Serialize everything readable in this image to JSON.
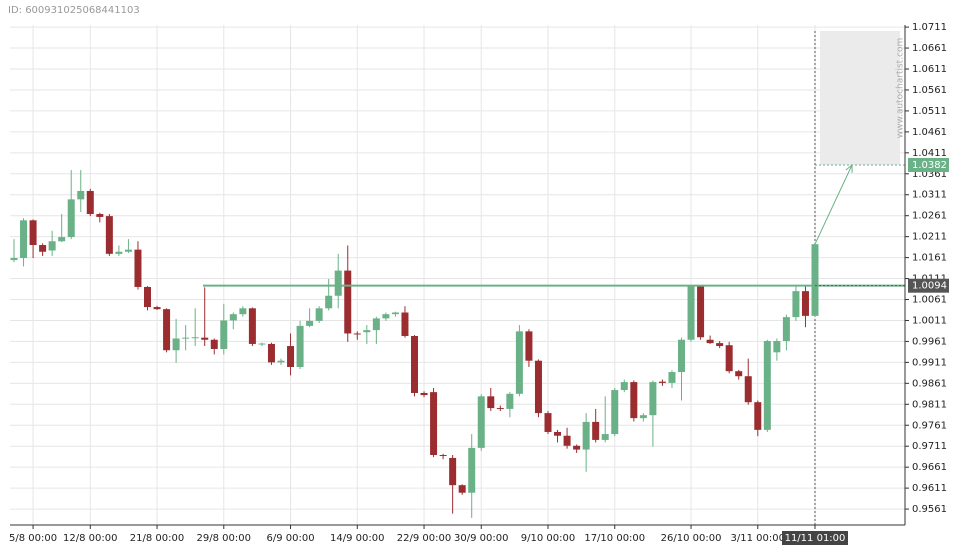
{
  "chart_data": {
    "type": "candlestick",
    "id_text": "ID: 600931025068441103",
    "watermark": "www.autochartist.com",
    "up_color": "#6ab187",
    "down_color": "#9b2d30",
    "categories": [
      null,
      null,
      "5/8 00:00",
      null,
      null,
      null,
      null,
      null,
      "12/8 00:00",
      null,
      null,
      null,
      null,
      null,
      null,
      "21/8 00:00",
      null,
      null,
      null,
      null,
      null,
      null,
      "29/8 00:00",
      null,
      null,
      null,
      null,
      null,
      null,
      "6/9 00:00",
      null,
      null,
      null,
      null,
      null,
      null,
      "14/9 00:00",
      null,
      null,
      null,
      null,
      null,
      null,
      "22/9 00:00",
      null,
      null,
      null,
      null,
      null,
      "30/9 00:00",
      null,
      null,
      null,
      null,
      null,
      null,
      "9/10 00:00",
      null,
      null,
      null,
      null,
      null,
      null,
      "17/10 00:00",
      null,
      null,
      null,
      null,
      null,
      null,
      null,
      "26/10 00:00",
      null,
      null,
      null,
      null,
      null,
      null,
      "3/11 00:00",
      null,
      null,
      null,
      null,
      null,
      "11/11 01:00"
    ],
    "open": [
      1.0155,
      1.016,
      1.025,
      1.0191,
      1.0178,
      1.02,
      1.021,
      1.03,
      1.032,
      1.0265,
      1.026,
      1.017,
      1.0175,
      1.018,
      1.0091,
      1.0043,
      1.0038,
      0.994,
      0.9968,
      0.9969,
      0.997,
      0.9965,
      0.9943,
      1.0011,
      1.0026,
      1.004,
      0.9955,
      0.9955,
      0.9911,
      0.995,
      0.99,
      0.9998,
      1.001,
      1.004,
      1.007,
      1.013,
      0.998,
      0.9983,
      0.9988,
      1.0016,
      1.0026,
      1.003,
      0.9974,
      0.9838,
      0.984,
      0.969,
      0.9683,
      0.9618,
      0.96,
      0.9707,
      0.983,
      0.9802,
      0.98,
      0.9836,
      0.9985,
      0.9915,
      0.979,
      0.9745,
      0.9736,
      0.9712,
      0.9703,
      0.9769,
      0.9726,
      0.974,
      0.9845,
      0.9864,
      0.9778,
      0.9785,
      0.9865,
      0.9862,
      0.9888,
      0.9965,
      1.0093,
      0.9965,
      0.9957,
      0.9952,
      0.989,
      0.9878,
      0.9816,
      0.975,
      0.9935,
      0.9962,
      1.0019,
      1.0081,
      1.0022
    ],
    "high": [
      1.0205,
      1.0255,
      1.0252,
      1.0195,
      1.0225,
      1.0265,
      1.037,
      1.037,
      1.0325,
      1.0268,
      1.0265,
      1.019,
      1.0205,
      1.02,
      1.0093,
      1.0046,
      1.004,
      1.0015,
      1.0,
      1.004,
      1.009,
      0.9968,
      1.005,
      1.003,
      1.0045,
      1.0042,
      0.9958,
      0.9958,
      0.992,
      0.998,
      1.001,
      1.004,
      1.0045,
      1.011,
      1.017,
      1.019,
      0.9985,
      1.0,
      1.002,
      1.003,
      1.0032,
      1.0045,
      0.9976,
      0.9842,
      0.985,
      0.9693,
      0.969,
      0.962,
      0.974,
      0.9835,
      0.985,
      0.9808,
      0.984,
      1.0,
      0.999,
      0.9918,
      0.9795,
      0.975,
      0.9755,
      0.9715,
      0.979,
      0.98,
      0.983,
      0.985,
      0.987,
      0.9868,
      0.979,
      0.9868,
      0.987,
      0.9892,
      0.997,
      1.0095,
      1.0095,
      0.9975,
      0.9962,
      0.996,
      0.9893,
      0.992,
      0.982,
      0.9965,
      0.9968,
      1.0025,
      1.0095,
      1.0095,
      1.0193
    ],
    "low": [
      1.015,
      1.014,
      1.016,
      1.0165,
      1.0165,
      1.0198,
      1.0205,
      1.027,
      1.026,
      1.0245,
      1.0165,
      1.0165,
      1.0172,
      1.0085,
      1.0035,
      1.0036,
      0.9935,
      0.991,
      0.994,
      0.995,
      0.995,
      0.993,
      0.993,
      0.999,
      1.002,
      0.995,
      0.995,
      0.9905,
      0.9905,
      0.988,
      0.9895,
      0.9995,
      1.0005,
      1.0035,
      1.004,
      0.996,
      0.9965,
      0.9955,
      0.9955,
      1.001,
      1.002,
      0.997,
      0.983,
      0.9828,
      0.9685,
      0.968,
      0.955,
      0.9595,
      0.954,
      0.97,
      0.9795,
      0.9795,
      0.978,
      0.983,
      0.99,
      0.978,
      0.974,
      0.972,
      0.9705,
      0.9695,
      0.965,
      0.972,
      0.972,
      0.9735,
      0.984,
      0.977,
      0.977,
      0.971,
      0.9855,
      0.985,
      0.982,
      0.996,
      0.9965,
      0.9955,
      0.9945,
      0.9885,
      0.987,
      0.981,
      0.9735,
      0.9745,
      0.9915,
      0.994,
      1.001,
      0.9995,
      1.002
    ],
    "close": [
      1.016,
      1.025,
      1.0191,
      1.0175,
      1.02,
      1.021,
      1.03,
      1.032,
      1.0265,
      1.0258,
      1.017,
      1.0175,
      1.018,
      1.0091,
      1.0043,
      1.0038,
      0.994,
      0.9968,
      0.997,
      0.9971,
      0.9965,
      0.9943,
      1.0011,
      1.0026,
      1.004,
      0.9955,
      0.9956,
      0.9911,
      0.9915,
      0.99,
      0.9998,
      1.001,
      1.004,
      1.007,
      1.013,
      0.998,
      0.9978,
      0.9988,
      1.0016,
      1.0026,
      1.003,
      0.9974,
      0.9838,
      0.9833,
      0.969,
      0.9688,
      0.9618,
      0.96,
      0.9707,
      0.983,
      0.9802,
      0.98,
      0.9836,
      0.9985,
      0.9915,
      0.979,
      0.9745,
      0.9736,
      0.9712,
      0.9703,
      0.9769,
      0.9726,
      0.974,
      0.9845,
      0.9864,
      0.9778,
      0.9785,
      0.9864,
      0.9862,
      0.9888,
      0.9965,
      1.0093,
      0.9971,
      0.9957,
      0.995,
      0.989,
      0.9878,
      0.9816,
      0.975,
      0.9962,
      0.9962,
      1.0019,
      1.0081,
      1.0022,
      1.0193
    ],
    "support": 1.0094,
    "support_color": "#6ab187",
    "target": 1.0382,
    "ylim": [
      0.9523,
      1.0716
    ],
    "yticks": [
      1.0711,
      1.0661,
      1.0611,
      1.0561,
      1.0511,
      1.0461,
      1.0411,
      1.0361,
      1.0311,
      1.0261,
      1.0211,
      1.0161,
      1.0111,
      1.0061,
      1.0011,
      0.9961,
      0.9911,
      0.9861,
      0.9811,
      0.9761,
      0.9711,
      0.9661,
      0.9611,
      0.9561
    ],
    "grid": true
  }
}
